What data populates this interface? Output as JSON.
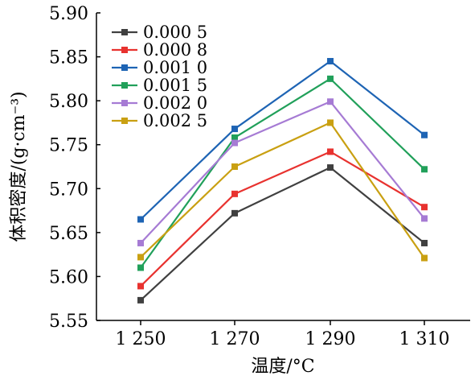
{
  "chart_data": {
    "type": "line",
    "xlabel": "温度/°C",
    "ylabel": "体积密度/(g·cm⁻³)",
    "categories": [
      "1 250",
      "1 270",
      "1 290",
      "1 310"
    ],
    "ylim": [
      5.55,
      5.9
    ],
    "yticks": [
      "5.55",
      "5.60",
      "5.65",
      "5.70",
      "5.75",
      "5.80",
      "5.85",
      "5.90"
    ],
    "legend_position": "top-left",
    "grid": false,
    "series": [
      {
        "name": "0.000 5",
        "color": "#404040",
        "values": [
          5.573,
          5.672,
          5.724,
          5.638
        ]
      },
      {
        "name": "0.000 8",
        "color": "#e8322f",
        "values": [
          5.589,
          5.694,
          5.742,
          5.679
        ]
      },
      {
        "name": "0.001 0",
        "color": "#1e64b4",
        "values": [
          5.665,
          5.768,
          5.845,
          5.761
        ]
      },
      {
        "name": "0.001 5",
        "color": "#21a05a",
        "values": [
          5.61,
          5.758,
          5.825,
          5.722
        ]
      },
      {
        "name": "0.002 0",
        "color": "#a67bd4",
        "values": [
          5.638,
          5.752,
          5.799,
          5.666
        ]
      },
      {
        "name": "0.002 5",
        "color": "#c9a012",
        "values": [
          5.622,
          5.725,
          5.775,
          5.621
        ]
      }
    ]
  }
}
